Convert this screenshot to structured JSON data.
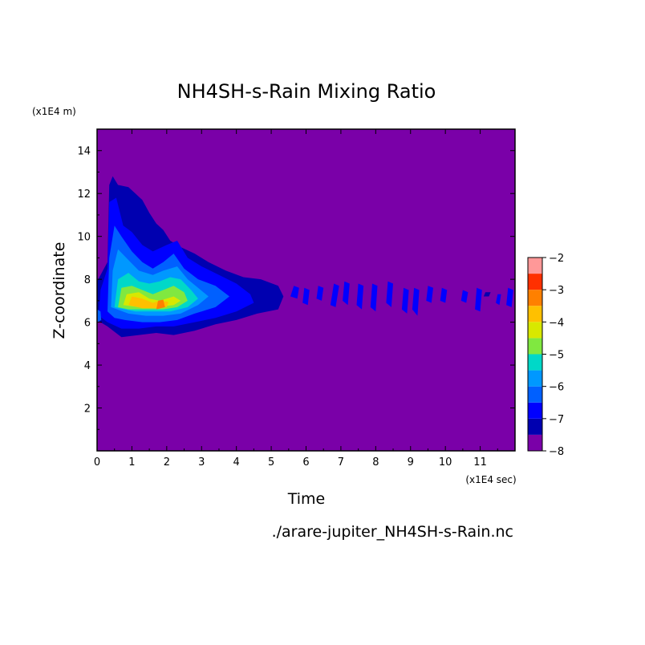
{
  "chart_data": {
    "type": "heatmap",
    "title": "NH4SH-s-Rain Mixing Ratio",
    "xlabel": "Time",
    "ylabel": "Z-coordinate",
    "x_unit": "(x1E4 sec)",
    "y_unit": "(x1E4 m)",
    "xlim": [
      0,
      12
    ],
    "ylim": [
      0,
      15
    ],
    "x_ticks": [
      0,
      1,
      2,
      3,
      4,
      5,
      6,
      7,
      8,
      9,
      10,
      11
    ],
    "y_ticks": [
      2,
      4,
      6,
      8,
      10,
      12,
      14
    ],
    "background_color": "#7a00a8",
    "colorbar": {
      "ticks": [
        -2,
        -3,
        -4,
        -5,
        -6,
        -7,
        -8
      ],
      "range": [
        -8,
        -2
      ],
      "levels": [
        -8,
        -7.5,
        -7,
        -6.5,
        -6,
        -5.5,
        -5,
        -4.5,
        -4,
        -3.5,
        -3,
        -2.5,
        -2
      ],
      "colors": [
        "#7a00a8",
        "#0000b0",
        "#0000ff",
        "#0060ff",
        "#0098ff",
        "#00d8c8",
        "#80e840",
        "#d8e800",
        "#ffc000",
        "#ff8000",
        "#ff3000",
        "#ff9898"
      ]
    },
    "regions": [
      {
        "level": -7.5,
        "pts": [
          [
            0,
            6.1
          ],
          [
            0,
            7.9
          ],
          [
            0.3,
            8.8
          ],
          [
            0.35,
            12.4
          ],
          [
            0.45,
            12.8
          ],
          [
            0.6,
            12.4
          ],
          [
            0.9,
            12.3
          ],
          [
            1.1,
            12
          ],
          [
            1.3,
            11.7
          ],
          [
            1.5,
            11.1
          ],
          [
            1.7,
            10.6
          ],
          [
            1.9,
            10.3
          ],
          [
            2.1,
            9.8
          ],
          [
            2.4,
            9.5
          ],
          [
            2.8,
            9.2
          ],
          [
            3.2,
            8.8
          ],
          [
            3.7,
            8.4
          ],
          [
            4.2,
            8.1
          ],
          [
            4.7,
            8.0
          ],
          [
            5.2,
            7.7
          ],
          [
            5.35,
            7.2
          ],
          [
            5.2,
            6.6
          ],
          [
            4.6,
            6.4
          ],
          [
            4.0,
            6.1
          ],
          [
            3.4,
            5.9
          ],
          [
            2.8,
            5.6
          ],
          [
            2.2,
            5.4
          ],
          [
            1.7,
            5.5
          ],
          [
            1.2,
            5.4
          ],
          [
            0.7,
            5.3
          ],
          [
            0.3,
            5.8
          ]
        ]
      },
      {
        "level": -7,
        "pts": [
          [
            0.05,
            6.3
          ],
          [
            0.1,
            7.5
          ],
          [
            0.3,
            8.5
          ],
          [
            0.35,
            11.6
          ],
          [
            0.55,
            11.8
          ],
          [
            0.75,
            10.5
          ],
          [
            1.0,
            10.2
          ],
          [
            1.3,
            9.6
          ],
          [
            1.6,
            9.3
          ],
          [
            2.0,
            9.6
          ],
          [
            2.3,
            9.8
          ],
          [
            2.6,
            9.0
          ],
          [
            3.0,
            8.6
          ],
          [
            3.5,
            8.2
          ],
          [
            4.0,
            7.8
          ],
          [
            4.4,
            7.3
          ],
          [
            4.5,
            6.9
          ],
          [
            4.0,
            6.5
          ],
          [
            3.4,
            6.2
          ],
          [
            2.8,
            6.0
          ],
          [
            2.2,
            5.8
          ],
          [
            1.7,
            5.8
          ],
          [
            1.2,
            5.7
          ],
          [
            0.7,
            5.7
          ],
          [
            0.3,
            6.0
          ]
        ]
      },
      {
        "level": -6.5,
        "pts": [
          [
            0.3,
            6.5
          ],
          [
            0.35,
            9.0
          ],
          [
            0.5,
            10.5
          ],
          [
            0.7,
            10.0
          ],
          [
            1.0,
            9.3
          ],
          [
            1.3,
            8.8
          ],
          [
            1.6,
            8.5
          ],
          [
            1.9,
            8.8
          ],
          [
            2.2,
            9.2
          ],
          [
            2.5,
            8.5
          ],
          [
            2.9,
            8.0
          ],
          [
            3.4,
            7.7
          ],
          [
            3.8,
            7.2
          ],
          [
            3.4,
            6.7
          ],
          [
            2.8,
            6.4
          ],
          [
            2.3,
            6.1
          ],
          [
            1.8,
            6.0
          ],
          [
            1.3,
            6.0
          ],
          [
            0.8,
            6.1
          ],
          [
            0.5,
            6.2
          ]
        ]
      },
      {
        "level": -6,
        "pts": [
          [
            0.4,
            6.7
          ],
          [
            0.45,
            8.4
          ],
          [
            0.6,
            9.4
          ],
          [
            0.9,
            8.9
          ],
          [
            1.2,
            8.4
          ],
          [
            1.6,
            8.2
          ],
          [
            1.9,
            8.4
          ],
          [
            2.3,
            8.6
          ],
          [
            2.6,
            8.0
          ],
          [
            2.9,
            7.6
          ],
          [
            3.2,
            7.2
          ],
          [
            2.9,
            6.8
          ],
          [
            2.4,
            6.4
          ],
          [
            1.9,
            6.3
          ],
          [
            1.4,
            6.3
          ],
          [
            0.9,
            6.4
          ]
        ]
      },
      {
        "level": -5.5,
        "pts": [
          [
            0.5,
            6.7
          ],
          [
            0.6,
            8.0
          ],
          [
            0.9,
            8.3
          ],
          [
            1.2,
            7.9
          ],
          [
            1.5,
            7.8
          ],
          [
            1.8,
            7.9
          ],
          [
            2.1,
            8.1
          ],
          [
            2.4,
            8.0
          ],
          [
            2.7,
            7.5
          ],
          [
            2.9,
            7.1
          ],
          [
            2.6,
            6.7
          ],
          [
            2.1,
            6.5
          ],
          [
            1.6,
            6.5
          ],
          [
            1.1,
            6.5
          ]
        ]
      },
      {
        "level": -5,
        "pts": [
          [
            0.6,
            6.7
          ],
          [
            0.7,
            7.6
          ],
          [
            1.0,
            7.7
          ],
          [
            1.3,
            7.5
          ],
          [
            1.6,
            7.3
          ],
          [
            1.9,
            7.5
          ],
          [
            2.2,
            7.7
          ],
          [
            2.5,
            7.4
          ],
          [
            2.6,
            7.0
          ],
          [
            2.3,
            6.7
          ],
          [
            1.9,
            6.6
          ],
          [
            1.4,
            6.6
          ],
          [
            0.9,
            6.6
          ]
        ]
      },
      {
        "level": -4.5,
        "pts": [
          [
            0.75,
            6.8
          ],
          [
            0.85,
            7.3
          ],
          [
            1.2,
            7.4
          ],
          [
            1.5,
            7.1
          ],
          [
            1.8,
            7.0
          ],
          [
            2.2,
            7.2
          ],
          [
            2.4,
            7.0
          ],
          [
            2.2,
            6.8
          ],
          [
            1.7,
            6.7
          ],
          [
            1.2,
            6.7
          ]
        ]
      },
      {
        "level": -4,
        "pts": [
          [
            0.9,
            6.8
          ],
          [
            1.0,
            7.2
          ],
          [
            1.3,
            7.1
          ],
          [
            1.6,
            6.9
          ],
          [
            1.8,
            7.0
          ],
          [
            2.05,
            6.95
          ],
          [
            2.0,
            6.7
          ],
          [
            1.7,
            6.65
          ],
          [
            1.3,
            6.65
          ]
        ]
      },
      {
        "level": -3.5,
        "pts": [
          [
            1.7,
            6.6
          ],
          [
            1.75,
            7.0
          ],
          [
            1.9,
            7.05
          ],
          [
            1.95,
            6.7
          ]
        ]
      },
      {
        "level": -6.5,
        "pts": [
          [
            0.0,
            6.0
          ],
          [
            0.0,
            6.6
          ],
          [
            0.1,
            6.5
          ],
          [
            0.12,
            6.1
          ]
        ]
      },
      {
        "level": -7,
        "pts": [
          [
            5.55,
            7.2
          ],
          [
            5.65,
            7.7
          ],
          [
            5.8,
            7.6
          ],
          [
            5.75,
            7.1
          ]
        ]
      },
      {
        "level": -7,
        "pts": [
          [
            5.9,
            6.9
          ],
          [
            5.95,
            7.6
          ],
          [
            6.1,
            7.5
          ],
          [
            6.05,
            6.8
          ]
        ]
      },
      {
        "level": -7,
        "pts": [
          [
            6.3,
            7.1
          ],
          [
            6.35,
            7.7
          ],
          [
            6.5,
            7.6
          ],
          [
            6.45,
            7.0
          ]
        ]
      },
      {
        "level": -7,
        "pts": [
          [
            6.7,
            6.8
          ],
          [
            6.8,
            7.8
          ],
          [
            6.95,
            7.7
          ],
          [
            6.85,
            6.7
          ]
        ]
      },
      {
        "level": -7,
        "pts": [
          [
            7.05,
            7.0
          ],
          [
            7.1,
            7.9
          ],
          [
            7.25,
            7.8
          ],
          [
            7.2,
            6.8
          ]
        ]
      },
      {
        "level": -7,
        "pts": [
          [
            7.45,
            6.8
          ],
          [
            7.5,
            7.8
          ],
          [
            7.65,
            7.7
          ],
          [
            7.6,
            6.6
          ]
        ]
      },
      {
        "level": -7,
        "pts": [
          [
            7.85,
            6.7
          ],
          [
            7.9,
            7.8
          ],
          [
            8.05,
            7.7
          ],
          [
            8.0,
            6.5
          ]
        ]
      },
      {
        "level": -7,
        "pts": [
          [
            8.3,
            6.9
          ],
          [
            8.35,
            7.9
          ],
          [
            8.5,
            7.8
          ],
          [
            8.45,
            6.7
          ]
        ]
      },
      {
        "level": -7,
        "pts": [
          [
            8.75,
            6.6
          ],
          [
            8.8,
            7.6
          ],
          [
            8.95,
            7.5
          ],
          [
            8.9,
            6.4
          ]
        ]
      },
      {
        "level": -7,
        "pts": [
          [
            9.05,
            6.6
          ],
          [
            9.1,
            7.6
          ],
          [
            9.25,
            7.5
          ],
          [
            9.2,
            6.3
          ]
        ]
      },
      {
        "level": -7,
        "pts": [
          [
            9.45,
            7.0
          ],
          [
            9.5,
            7.7
          ],
          [
            9.65,
            7.6
          ],
          [
            9.6,
            6.9
          ]
        ]
      },
      {
        "level": -7,
        "pts": [
          [
            9.85,
            7.0
          ],
          [
            9.9,
            7.6
          ],
          [
            10.05,
            7.5
          ],
          [
            10.0,
            6.9
          ]
        ]
      },
      {
        "level": -7,
        "pts": [
          [
            10.45,
            7.0
          ],
          [
            10.5,
            7.5
          ],
          [
            10.65,
            7.4
          ],
          [
            10.6,
            6.9
          ]
        ]
      },
      {
        "level": -7,
        "pts": [
          [
            10.85,
            6.6
          ],
          [
            10.9,
            7.6
          ],
          [
            11.05,
            7.5
          ],
          [
            11.0,
            6.5
          ]
        ]
      },
      {
        "level": -7,
        "pts": [
          [
            11.45,
            6.9
          ],
          [
            11.5,
            7.3
          ],
          [
            11.6,
            7.3
          ],
          [
            11.55,
            6.8
          ]
        ]
      },
      {
        "level": -7,
        "pts": [
          [
            11.75,
            6.8
          ],
          [
            11.8,
            7.6
          ],
          [
            11.95,
            7.5
          ],
          [
            11.9,
            6.7
          ]
        ]
      },
      {
        "level": -7.5,
        "pts": [
          [
            11.1,
            7.2
          ],
          [
            11.15,
            7.4
          ],
          [
            11.3,
            7.4
          ],
          [
            11.25,
            7.2
          ]
        ]
      }
    ]
  },
  "footer": {
    "filename": "./arare-jupiter_NH4SH-s-Rain.nc"
  }
}
